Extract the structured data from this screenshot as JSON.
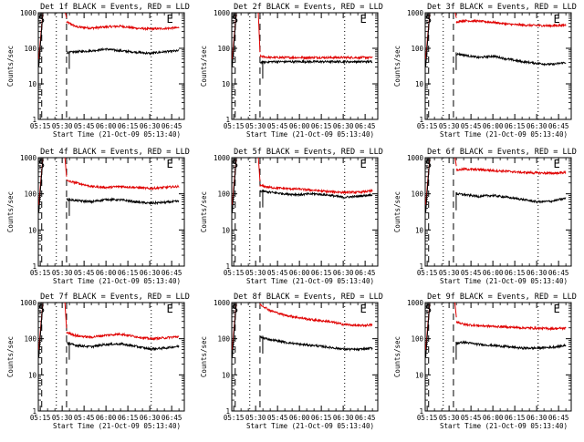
{
  "figure": {
    "xlabel": "Start Time (21-Oct-09 05:13:40)",
    "ylabel": "Counts/sec",
    "legend_text": "BLACK = Events, RED = LLD",
    "colors": {
      "events": "#000000",
      "lld": "#e00000",
      "axis": "#000000",
      "background": "#ffffff"
    }
  },
  "chart_data": [
    {
      "type": "line",
      "title": "Det 1f BLACK = Events, RED = LLD",
      "yscale": "log",
      "ylim": [
        1,
        1000
      ],
      "xlim": [
        "05:13:40",
        "06:53:40"
      ],
      "xticks": [
        "05:15",
        "05:30",
        "05:45",
        "06:00",
        "06:15",
        "06:30",
        "06:45"
      ],
      "yticks": [
        "1",
        "10",
        "100",
        "1000"
      ],
      "markers": {
        "S": "05:13",
        "E": "06:44"
      },
      "dashed_lines": [
        "05:16",
        "05:33"
      ],
      "dotted_lines": [
        "05:26",
        "06:31"
      ],
      "series": [
        {
          "name": "RED = LLD",
          "x": [
            "05:33",
            "05:40",
            "05:50",
            "06:00",
            "06:10",
            "06:20",
            "06:30",
            "06:40",
            "06:50"
          ],
          "values": [
            550,
            400,
            370,
            400,
            420,
            370,
            350,
            360,
            380
          ]
        },
        {
          "name": "BLACK = Events",
          "x": [
            "05:33",
            "05:40",
            "05:50",
            "06:00",
            "06:10",
            "06:20",
            "06:30",
            "06:40",
            "06:50"
          ],
          "values": [
            75,
            80,
            85,
            95,
            85,
            78,
            72,
            80,
            85
          ]
        }
      ]
    },
    {
      "type": "line",
      "title": "Det 2f BLACK = Events, RED = LLD",
      "yscale": "log",
      "ylim": [
        1,
        1000
      ],
      "xlim": [
        "05:13:40",
        "06:53:40"
      ],
      "xticks": [
        "05:15",
        "05:30",
        "05:45",
        "06:00",
        "06:15",
        "06:30",
        "06:45"
      ],
      "yticks": [
        "1",
        "10",
        "100",
        "1000"
      ],
      "markers": {
        "S": "05:13",
        "E": "06:44"
      },
      "dashed_lines": [
        "05:16",
        "05:33"
      ],
      "dotted_lines": [
        "05:26",
        "06:31"
      ],
      "series": [
        {
          "name": "RED = LLD",
          "x": [
            "05:33",
            "05:40",
            "05:50",
            "06:00",
            "06:10",
            "06:20",
            "06:30",
            "06:40",
            "06:50"
          ],
          "values": [
            60,
            55,
            55,
            55,
            55,
            55,
            55,
            55,
            55
          ]
        },
        {
          "name": "BLACK = Events",
          "x": [
            "05:33",
            "05:40",
            "05:50",
            "06:00",
            "06:10",
            "06:20",
            "06:30",
            "06:40",
            "06:50"
          ],
          "values": [
            40,
            42,
            42,
            42,
            42,
            42,
            42,
            42,
            42
          ]
        }
      ]
    },
    {
      "type": "line",
      "title": "Det 3f BLACK = Events, RED = LLD",
      "yscale": "log",
      "ylim": [
        1,
        1000
      ],
      "xlim": [
        "05:13:40",
        "06:53:40"
      ],
      "xticks": [
        "05:15",
        "05:30",
        "05:45",
        "06:00",
        "06:15",
        "06:30",
        "06:45"
      ],
      "yticks": [
        "1",
        "10",
        "100",
        "1000"
      ],
      "markers": {
        "S": "05:13",
        "E": "06:44"
      },
      "dashed_lines": [
        "05:16",
        "05:33"
      ],
      "dotted_lines": [
        "05:26",
        "06:31"
      ],
      "series": [
        {
          "name": "RED = LLD",
          "x": [
            "05:35",
            "05:40",
            "05:50",
            "06:00",
            "06:10",
            "06:20",
            "06:30",
            "06:40",
            "06:50"
          ],
          "values": [
            550,
            600,
            580,
            540,
            480,
            450,
            440,
            430,
            450
          ]
        },
        {
          "name": "BLACK = Events",
          "x": [
            "05:35",
            "05:40",
            "05:50",
            "06:00",
            "06:10",
            "06:20",
            "06:30",
            "06:40",
            "06:50"
          ],
          "values": [
            70,
            65,
            55,
            60,
            50,
            42,
            38,
            35,
            40
          ]
        }
      ]
    },
    {
      "type": "line",
      "title": "Det 4f BLACK = Events, RED = LLD",
      "yscale": "log",
      "ylim": [
        1,
        1000
      ],
      "xlim": [
        "05:13:40",
        "06:53:40"
      ],
      "xticks": [
        "05:15",
        "05:30",
        "05:45",
        "06:00",
        "06:15",
        "06:30",
        "06:45"
      ],
      "yticks": [
        "1",
        "10",
        "100",
        "1000"
      ],
      "markers": {
        "S": "05:13",
        "E": "06:44"
      },
      "dashed_lines": [
        "05:16",
        "05:33"
      ],
      "dotted_lines": [
        "05:26",
        "06:31"
      ],
      "series": [
        {
          "name": "RED = LLD",
          "x": [
            "05:33",
            "05:40",
            "05:50",
            "06:00",
            "06:10",
            "06:20",
            "06:30",
            "06:40",
            "06:50"
          ],
          "values": [
            230,
            200,
            160,
            150,
            160,
            150,
            140,
            150,
            160
          ]
        },
        {
          "name": "BLACK = Events",
          "x": [
            "05:33",
            "05:40",
            "05:50",
            "06:00",
            "06:10",
            "06:20",
            "06:30",
            "06:40",
            "06:50"
          ],
          "values": [
            70,
            65,
            60,
            70,
            68,
            60,
            55,
            58,
            62
          ]
        }
      ]
    },
    {
      "type": "line",
      "title": "Det 5f BLACK = Events, RED = LLD",
      "yscale": "log",
      "ylim": [
        1,
        1000
      ],
      "xlim": [
        "05:13:40",
        "06:53:40"
      ],
      "xticks": [
        "05:15",
        "05:30",
        "05:45",
        "06:00",
        "06:15",
        "06:30",
        "06:45"
      ],
      "yticks": [
        "1",
        "10",
        "100",
        "1000"
      ],
      "markers": {
        "S": "05:13",
        "E": "06:44"
      },
      "dashed_lines": [
        "05:16",
        "05:33"
      ],
      "dotted_lines": [
        "05:26",
        "06:31"
      ],
      "series": [
        {
          "name": "RED = LLD",
          "x": [
            "05:33",
            "05:40",
            "05:50",
            "06:00",
            "06:10",
            "06:20",
            "06:30",
            "06:40",
            "06:50"
          ],
          "values": [
            170,
            150,
            140,
            135,
            125,
            115,
            110,
            110,
            120
          ]
        },
        {
          "name": "BLACK = Events",
          "x": [
            "05:33",
            "05:40",
            "05:50",
            "06:00",
            "06:10",
            "06:20",
            "06:30",
            "06:40",
            "06:50"
          ],
          "values": [
            120,
            110,
            100,
            95,
            100,
            92,
            80,
            85,
            95
          ]
        }
      ]
    },
    {
      "type": "line",
      "title": "Det 6f BLACK = Events, RED = LLD",
      "yscale": "log",
      "ylim": [
        1,
        1000
      ],
      "xlim": [
        "05:13:40",
        "06:53:40"
      ],
      "xticks": [
        "05:15",
        "05:30",
        "05:45",
        "06:00",
        "06:15",
        "06:30",
        "06:45"
      ],
      "yticks": [
        "1",
        "10",
        "100",
        "1000"
      ],
      "markers": {
        "S": "05:13",
        "E": "06:44"
      },
      "dashed_lines": [
        "05:16",
        "05:33"
      ],
      "dotted_lines": [
        "05:26",
        "06:31"
      ],
      "series": [
        {
          "name": "RED = LLD",
          "x": [
            "05:35",
            "05:40",
            "05:50",
            "06:00",
            "06:10",
            "06:20",
            "06:30",
            "06:40",
            "06:50"
          ],
          "values": [
            450,
            480,
            470,
            440,
            420,
            390,
            380,
            370,
            390
          ]
        },
        {
          "name": "BLACK = Events",
          "x": [
            "05:35",
            "05:40",
            "05:50",
            "06:00",
            "06:10",
            "06:20",
            "06:30",
            "06:40",
            "06:50"
          ],
          "values": [
            100,
            95,
            85,
            90,
            80,
            70,
            60,
            62,
            75
          ]
        }
      ]
    },
    {
      "type": "line",
      "title": "Det 7f BLACK = Events, RED = LLD",
      "yscale": "log",
      "ylim": [
        1,
        1000
      ],
      "xlim": [
        "05:13:40",
        "06:53:40"
      ],
      "xticks": [
        "05:15",
        "05:30",
        "05:45",
        "06:00",
        "06:15",
        "06:30",
        "06:45"
      ],
      "yticks": [
        "1",
        "10",
        "100",
        "1000"
      ],
      "markers": {
        "S": "05:13",
        "E": "06:44"
      },
      "dashed_lines": [
        "05:16",
        "05:33"
      ],
      "dotted_lines": [
        "05:26",
        "06:31"
      ],
      "series": [
        {
          "name": "RED = LLD",
          "x": [
            "05:33",
            "05:40",
            "05:50",
            "06:00",
            "06:10",
            "06:20",
            "06:30",
            "06:40",
            "06:50"
          ],
          "values": [
            150,
            120,
            110,
            125,
            135,
            115,
            100,
            105,
            115
          ]
        },
        {
          "name": "BLACK = Events",
          "x": [
            "05:33",
            "05:40",
            "05:50",
            "06:00",
            "06:10",
            "06:20",
            "06:30",
            "06:40",
            "06:50"
          ],
          "values": [
            75,
            65,
            60,
            70,
            72,
            62,
            52,
            55,
            62
          ]
        }
      ]
    },
    {
      "type": "line",
      "title": "Det 8f BLACK = Events, RED = LLD",
      "yscale": "log",
      "ylim": [
        1,
        1000
      ],
      "xlim": [
        "05:13:40",
        "06:53:40"
      ],
      "xticks": [
        "05:15",
        "05:30",
        "05:45",
        "06:00",
        "06:15",
        "06:30",
        "06:45"
      ],
      "yticks": [
        "1",
        "10",
        "100",
        "1000"
      ],
      "markers": {
        "S": "05:13",
        "E": "06:44"
      },
      "dashed_lines": [
        "05:16",
        "05:33"
      ],
      "dotted_lines": [
        "05:26",
        "06:31"
      ],
      "series": [
        {
          "name": "RED = LLD",
          "x": [
            "05:33",
            "05:40",
            "05:50",
            "06:00",
            "06:10",
            "06:20",
            "06:30",
            "06:40",
            "06:50"
          ],
          "values": [
            900,
            600,
            450,
            380,
            330,
            300,
            250,
            230,
            240
          ]
        },
        {
          "name": "BLACK = Events",
          "x": [
            "05:33",
            "05:40",
            "05:50",
            "06:00",
            "06:10",
            "06:20",
            "06:30",
            "06:40",
            "06:50"
          ],
          "values": [
            110,
            95,
            80,
            70,
            65,
            58,
            52,
            50,
            55
          ]
        }
      ]
    },
    {
      "type": "line",
      "title": "Det 9f BLACK = Events, RED = LLD",
      "yscale": "log",
      "ylim": [
        1,
        1000
      ],
      "xlim": [
        "05:13:40",
        "06:53:40"
      ],
      "xticks": [
        "05:15",
        "05:30",
        "05:45",
        "06:00",
        "06:15",
        "06:30",
        "06:45"
      ],
      "yticks": [
        "1",
        "10",
        "100",
        "1000"
      ],
      "markers": {
        "S": "05:13",
        "E": "06:44"
      },
      "dashed_lines": [
        "05:16",
        "05:33"
      ],
      "dotted_lines": [
        "05:26",
        "06:31"
      ],
      "series": [
        {
          "name": "RED = LLD",
          "x": [
            "05:35",
            "05:40",
            "05:50",
            "06:00",
            "06:10",
            "06:20",
            "06:30",
            "06:40",
            "06:50"
          ],
          "values": [
            300,
            250,
            230,
            220,
            210,
            200,
            195,
            190,
            195
          ]
        },
        {
          "name": "BLACK = Events",
          "x": [
            "05:35",
            "05:40",
            "05:50",
            "06:00",
            "06:10",
            "06:20",
            "06:30",
            "06:40",
            "06:50"
          ],
          "values": [
            75,
            80,
            70,
            65,
            60,
            55,
            55,
            58,
            65
          ]
        }
      ]
    }
  ]
}
